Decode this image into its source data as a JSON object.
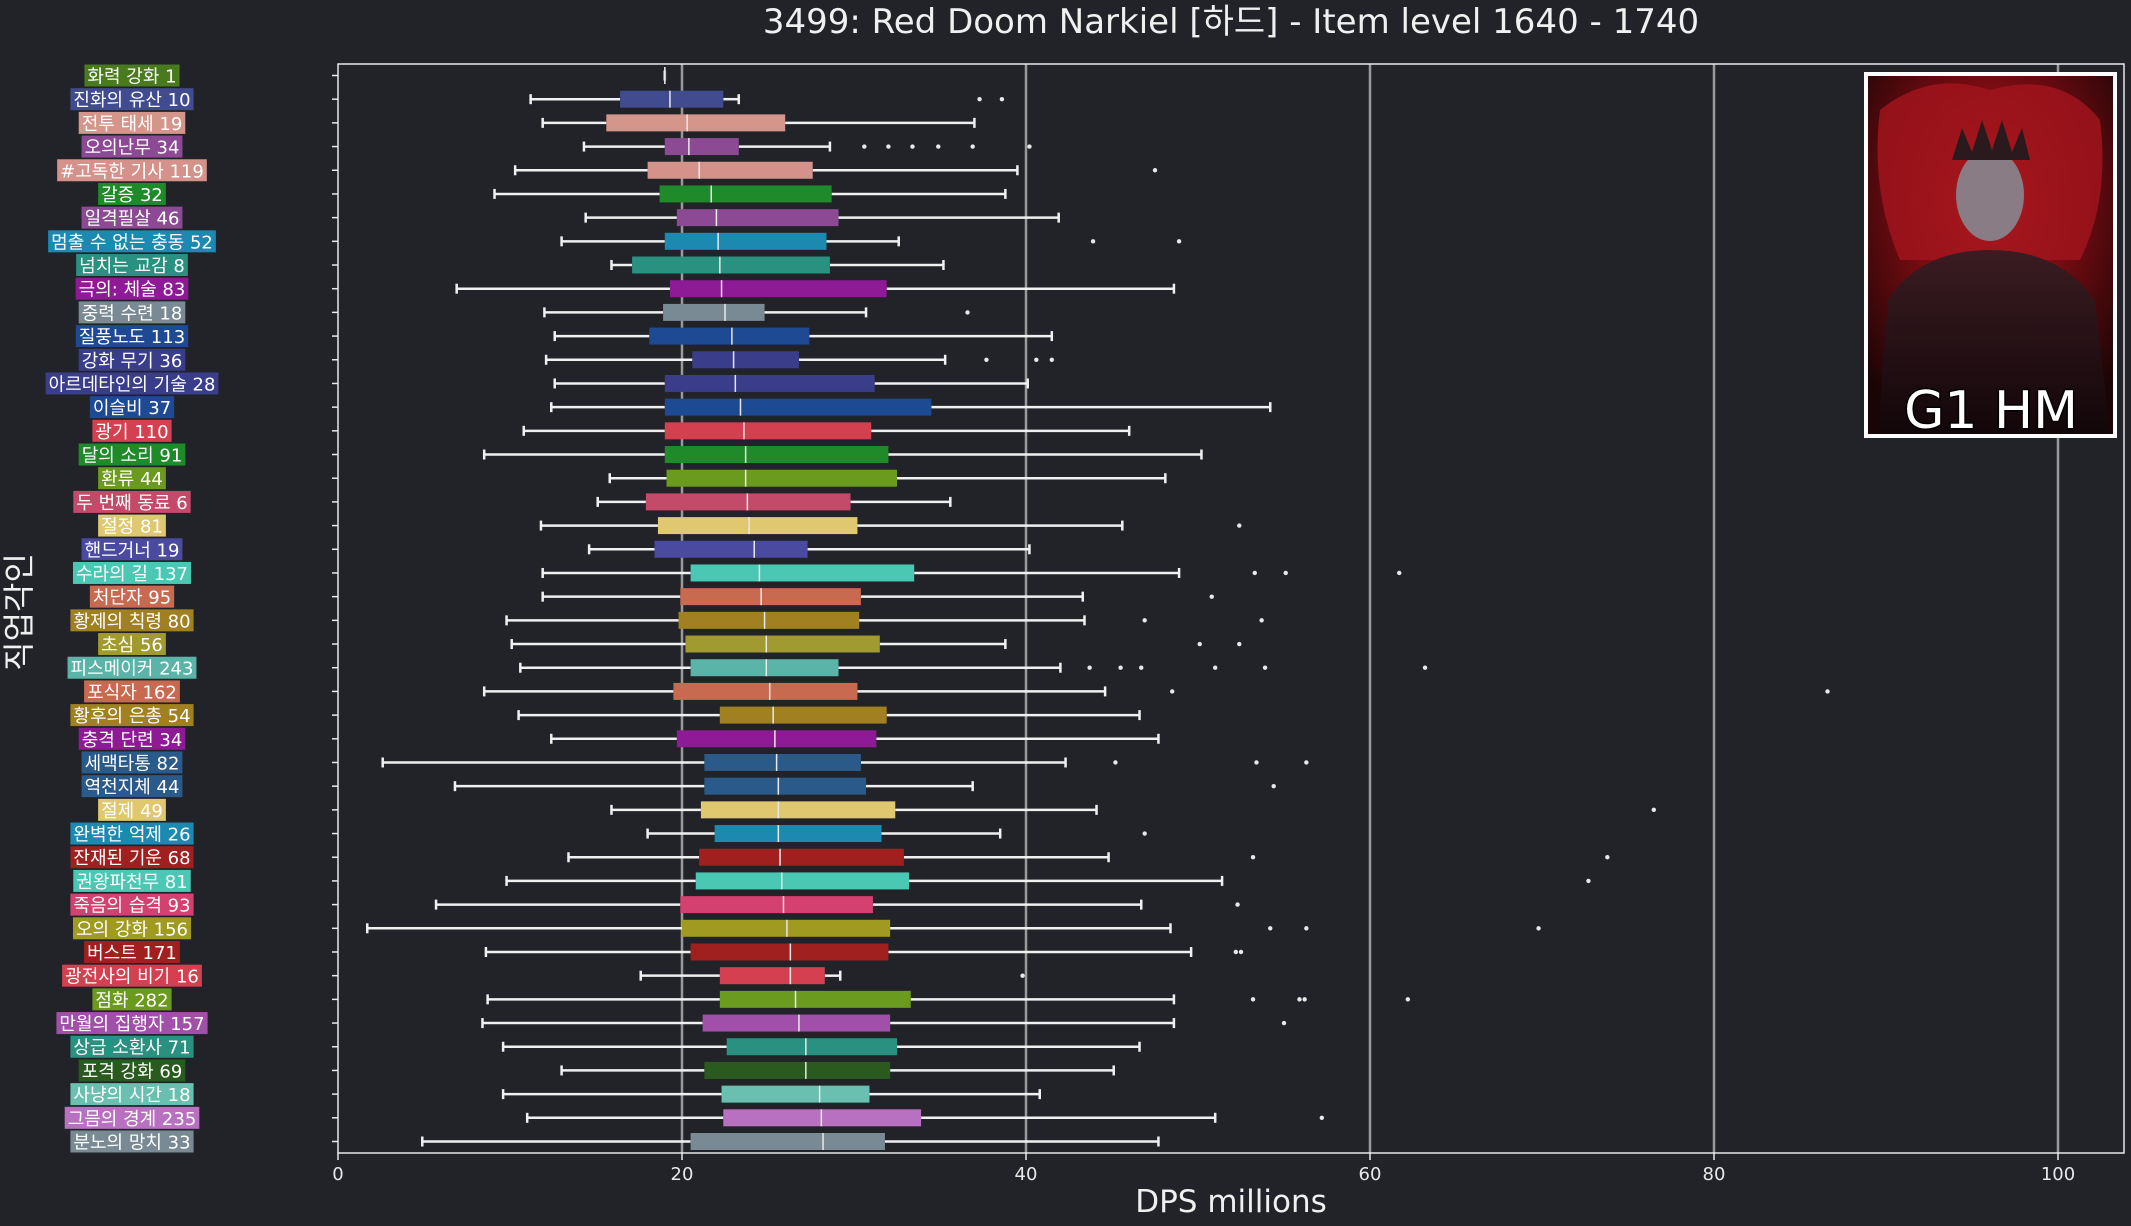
{
  "chart_data": {
    "type": "boxplot",
    "orientation": "horizontal",
    "title": "3499: Red Doom Narkiel [하드] - Item level 1640 - 1740",
    "xlabel": "DPS millions",
    "ylabel": "직업각인",
    "xlim": [
      0,
      104
    ],
    "xticks": [
      0,
      20,
      40,
      60,
      80,
      100
    ],
    "grid": "vertical",
    "badge_text": "G1 HM",
    "series": [
      {
        "label": "화력 강화 1",
        "color": "#4a7a1e",
        "min": 19.0,
        "q1": 19.0,
        "med": 19.0,
        "q3": 19.0,
        "max": 19.0,
        "outliers": []
      },
      {
        "label": "진화의 유산 10",
        "color": "#414b8f",
        "min": 11.2,
        "q1": 16.4,
        "med": 19.3,
        "q3": 22.4,
        "max": 23.3,
        "outliers": [
          37.3,
          38.6
        ]
      },
      {
        "label": "전투 태세 19",
        "color": "#d4968a",
        "min": 11.9,
        "q1": 15.6,
        "med": 20.3,
        "q3": 26.0,
        "max": 37.0,
        "outliers": []
      },
      {
        "label": "오의난무 34",
        "color": "#8c4a94",
        "min": 14.3,
        "q1": 19.0,
        "med": 20.4,
        "q3": 23.3,
        "max": 28.6,
        "outliers": [
          30.6,
          32.0,
          33.4,
          34.9,
          36.9,
          40.2
        ]
      },
      {
        "label": "#고독한 기사 119",
        "color": "#d4928a",
        "min": 10.3,
        "q1": 18.0,
        "med": 21.0,
        "q3": 27.6,
        "max": 39.5,
        "outliers": [
          47.5
        ]
      },
      {
        "label": "갈증 32",
        "color": "#1f8a2a",
        "min": 9.1,
        "q1": 18.7,
        "med": 21.7,
        "q3": 28.7,
        "max": 38.8,
        "outliers": []
      },
      {
        "label": "일격필살 46",
        "color": "#8c4a94",
        "min": 14.4,
        "q1": 19.7,
        "med": 22.0,
        "q3": 29.1,
        "max": 41.9,
        "outliers": []
      },
      {
        "label": "멈출 수 없는 충동 52",
        "color": "#1c8ab0",
        "min": 13.0,
        "q1": 19.0,
        "med": 22.1,
        "q3": 28.4,
        "max": 32.6,
        "outliers": [
          43.9,
          48.9
        ]
      },
      {
        "label": "넘치는 교감 8",
        "color": "#2a9080",
        "min": 15.9,
        "q1": 17.1,
        "med": 22.2,
        "q3": 28.6,
        "max": 35.2,
        "outliers": []
      },
      {
        "label": "극의: 체술 83",
        "color": "#8e1a96",
        "min": 6.9,
        "q1": 19.3,
        "med": 22.3,
        "q3": 31.9,
        "max": 48.6,
        "outliers": []
      },
      {
        "label": "중력 수련 18",
        "color": "#7a8a94",
        "min": 12.0,
        "q1": 18.9,
        "med": 22.5,
        "q3": 24.8,
        "max": 30.7,
        "outliers": [
          36.6
        ]
      },
      {
        "label": "질풍노도 113",
        "color": "#1e4a94",
        "min": 12.6,
        "q1": 18.1,
        "med": 22.9,
        "q3": 27.4,
        "max": 41.5,
        "outliers": []
      },
      {
        "label": "강화 무기 36",
        "color": "#3a3e8a",
        "min": 12.1,
        "q1": 20.6,
        "med": 23.0,
        "q3": 26.8,
        "max": 35.3,
        "outliers": [
          37.7,
          40.6,
          41.5
        ]
      },
      {
        "label": "아르데타인의 기술 28",
        "color": "#3a3e8a",
        "min": 12.6,
        "q1": 19.0,
        "med": 23.1,
        "q3": 31.2,
        "max": 40.1,
        "outliers": []
      },
      {
        "label": "이슬비 37",
        "color": "#1e4a94",
        "min": 12.4,
        "q1": 19.0,
        "med": 23.4,
        "q3": 34.5,
        "max": 54.2,
        "outliers": []
      },
      {
        "label": "광기 110",
        "color": "#d44050",
        "min": 10.8,
        "q1": 19.0,
        "med": 23.6,
        "q3": 31.0,
        "max": 46.0,
        "outliers": []
      },
      {
        "label": "달의 소리 91",
        "color": "#1f8a2a",
        "min": 8.5,
        "q1": 19.0,
        "med": 23.7,
        "q3": 32.0,
        "max": 50.2,
        "outliers": []
      },
      {
        "label": "환류 44",
        "color": "#6a9a1e",
        "min": 15.8,
        "q1": 19.1,
        "med": 23.7,
        "q3": 32.5,
        "max": 48.1,
        "outliers": []
      },
      {
        "label": "두 번째 동료 6",
        "color": "#c44a6a",
        "min": 15.1,
        "q1": 17.9,
        "med": 23.8,
        "q3": 29.8,
        "max": 35.6,
        "outliers": []
      },
      {
        "label": "절정 81",
        "color": "#e0c870",
        "min": 11.8,
        "q1": 18.6,
        "med": 23.9,
        "q3": 30.2,
        "max": 45.6,
        "outliers": [
          52.4
        ]
      },
      {
        "label": "핸드거너 19",
        "color": "#4a4aa0",
        "min": 14.6,
        "q1": 18.4,
        "med": 24.2,
        "q3": 27.3,
        "max": 40.2,
        "outliers": []
      },
      {
        "label": "수라의 길 137",
        "color": "#4ac8b4",
        "min": 11.9,
        "q1": 20.5,
        "med": 24.5,
        "q3": 33.5,
        "max": 48.9,
        "outliers": [
          53.3,
          55.1,
          61.7
        ]
      },
      {
        "label": "처단자 95",
        "color": "#c86a50",
        "min": 11.9,
        "q1": 19.9,
        "med": 24.6,
        "q3": 30.4,
        "max": 43.3,
        "outliers": [
          50.8
        ]
      },
      {
        "label": "황제의 칙령 80",
        "color": "#a08020",
        "min": 9.8,
        "q1": 19.8,
        "med": 24.8,
        "q3": 30.3,
        "max": 43.4,
        "outliers": [
          46.9,
          53.7
        ]
      },
      {
        "label": "초심 56",
        "color": "#a09a30",
        "min": 10.1,
        "q1": 20.2,
        "med": 24.9,
        "q3": 31.5,
        "max": 38.8,
        "outliers": [
          50.1,
          52.4
        ]
      },
      {
        "label": "피스메이커 243",
        "color": "#5ab4a8",
        "min": 10.6,
        "q1": 20.5,
        "med": 24.9,
        "q3": 29.1,
        "max": 42.0,
        "outliers": [
          43.7,
          45.5,
          46.7,
          51.0,
          53.9,
          63.2
        ]
      },
      {
        "label": "포식자 162",
        "color": "#c86a50",
        "min": 8.5,
        "q1": 19.5,
        "med": 25.1,
        "q3": 30.2,
        "max": 44.6,
        "outliers": [
          48.5,
          86.6
        ]
      },
      {
        "label": "황후의 은총 54",
        "color": "#a08020",
        "min": 10.5,
        "q1": 22.2,
        "med": 25.3,
        "q3": 31.9,
        "max": 46.6,
        "outliers": []
      },
      {
        "label": "충격 단련 34",
        "color": "#8e1a96",
        "min": 12.4,
        "q1": 19.7,
        "med": 25.4,
        "q3": 31.3,
        "max": 47.7,
        "outliers": []
      },
      {
        "label": "세맥타통 82",
        "color": "#2a5a8a",
        "min": 2.6,
        "q1": 21.3,
        "med": 25.5,
        "q3": 30.4,
        "max": 42.3,
        "outliers": [
          45.2,
          53.4,
          56.3
        ]
      },
      {
        "label": "역천지체 44",
        "color": "#2a5a8a",
        "min": 6.8,
        "q1": 21.3,
        "med": 25.6,
        "q3": 30.7,
        "max": 36.9,
        "outliers": [
          54.4
        ]
      },
      {
        "label": "절제 49",
        "color": "#e0c870",
        "min": 15.9,
        "q1": 21.1,
        "med": 25.6,
        "q3": 32.4,
        "max": 44.1,
        "outliers": [
          76.5
        ]
      },
      {
        "label": "완벽한 억제 26",
        "color": "#1c8ab0",
        "min": 18.0,
        "q1": 21.9,
        "med": 25.6,
        "q3": 31.6,
        "max": 38.5,
        "outliers": [
          46.9
        ]
      },
      {
        "label": "잔재된 기운 68",
        "color": "#a02020",
        "min": 13.4,
        "q1": 21.0,
        "med": 25.7,
        "q3": 32.9,
        "max": 44.8,
        "outliers": [
          53.2,
          73.8
        ]
      },
      {
        "label": "권왕파천무 81",
        "color": "#4ac8b4",
        "min": 9.8,
        "q1": 20.8,
        "med": 25.8,
        "q3": 33.2,
        "max": 51.4,
        "outliers": [
          72.7
        ]
      },
      {
        "label": "죽음의 습격 93",
        "color": "#d44070",
        "min": 5.7,
        "q1": 19.9,
        "med": 25.9,
        "q3": 31.1,
        "max": 46.7,
        "outliers": [
          52.3
        ]
      },
      {
        "label": "오의 강화 156",
        "color": "#a09a20",
        "min": 1.7,
        "q1": 20.0,
        "med": 26.1,
        "q3": 32.1,
        "max": 48.4,
        "outliers": [
          54.2,
          56.3,
          69.8
        ]
      },
      {
        "label": "버스트 171",
        "color": "#a02020",
        "min": 8.6,
        "q1": 20.5,
        "med": 26.3,
        "q3": 32.0,
        "max": 49.6,
        "outliers": [
          52.2,
          52.5
        ]
      },
      {
        "label": "광전사의 비기 16",
        "color": "#d44050",
        "min": 17.6,
        "q1": 22.2,
        "med": 26.3,
        "q3": 28.3,
        "max": 29.2,
        "outliers": [
          39.8
        ]
      },
      {
        "label": "점화 282",
        "color": "#6a9a1e",
        "min": 8.7,
        "q1": 22.2,
        "med": 26.6,
        "q3": 33.3,
        "max": 48.6,
        "outliers": [
          53.2,
          55.9,
          56.2,
          62.2
        ]
      },
      {
        "label": "만월의 집행자 157",
        "color": "#a050a8",
        "min": 8.4,
        "q1": 21.2,
        "med": 26.8,
        "q3": 32.1,
        "max": 48.6,
        "outliers": [
          55.0
        ]
      },
      {
        "label": "상급 소환사 71",
        "color": "#2a9080",
        "min": 9.6,
        "q1": 22.6,
        "med": 27.2,
        "q3": 32.5,
        "max": 46.6,
        "outliers": []
      },
      {
        "label": "포격 강화 69",
        "color": "#2a5a1e",
        "min": 13.0,
        "q1": 21.3,
        "med": 27.2,
        "q3": 32.1,
        "max": 45.1,
        "outliers": []
      },
      {
        "label": "사냥의 시간 18",
        "color": "#6ac0b0",
        "min": 9.6,
        "q1": 22.3,
        "med": 28.0,
        "q3": 30.9,
        "max": 40.8,
        "outliers": []
      },
      {
        "label": "그믐의 경계 235",
        "color": "#b870c0",
        "min": 11.0,
        "q1": 22.4,
        "med": 28.1,
        "q3": 33.9,
        "max": 51.0,
        "outliers": [
          57.2
        ]
      },
      {
        "label": "분노의 망치 33",
        "color": "#7a8a94",
        "min": 4.9,
        "q1": 20.5,
        "med": 28.2,
        "q3": 31.8,
        "max": 47.7,
        "outliers": []
      }
    ]
  }
}
